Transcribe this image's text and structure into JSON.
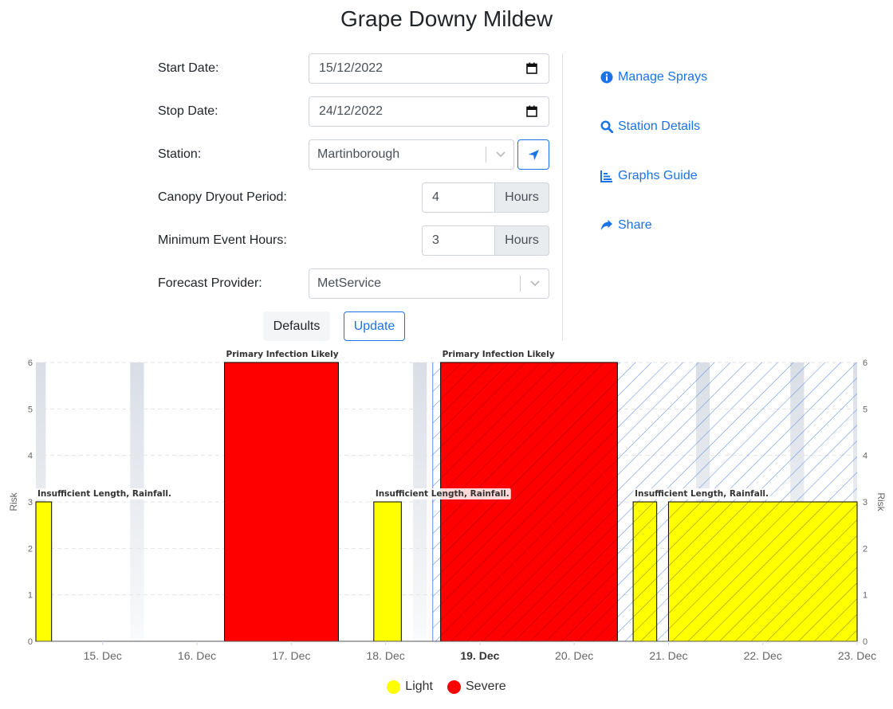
{
  "page": {
    "title": "Grape Downy Mildew"
  },
  "form": {
    "start_label": "Start Date:",
    "start_value": "15/12/2022",
    "stop_label": "Stop Date:",
    "stop_value": "24/12/2022",
    "station_label": "Station:",
    "station_value": "Martinborough",
    "canopy_label": "Canopy Dryout Period:",
    "canopy_value": "4",
    "canopy_unit": "Hours",
    "min_label": "Minimum Event Hours:",
    "min_value": "3",
    "min_unit": "Hours",
    "provider_label": "Forecast Provider:",
    "provider_value": "MetService",
    "defaults_label": "Defaults",
    "update_label": "Update"
  },
  "links": {
    "manage_sprays": "Manage Sprays",
    "station_details": "Station Details",
    "graphs_guide": "Graphs Guide",
    "share": "Share"
  },
  "colors": {
    "accent": "#1a73e8",
    "light": "#ffff00",
    "severe": "#ff0000"
  },
  "chart_data": {
    "type": "bar",
    "y_axis_label": "Risk",
    "ylim": [
      0,
      6
    ],
    "y_ticks": [
      0,
      1,
      2,
      3,
      4,
      5,
      6
    ],
    "x_range": [
      "14 Dec 19:00",
      "23 Dec 12:00"
    ],
    "x_tick_labels": [
      "15. Dec",
      "16. Dec",
      "17. Dec",
      "18. Dec",
      "19. Dec",
      "20. Dec",
      "21. Dec",
      "22. Dec",
      "23. Dec"
    ],
    "current_day_label": "19. Dec",
    "grid": true,
    "forecast_region_start": "19 Dec 00:00",
    "night_bands": [
      [
        "14 Dec 19:00",
        "14 Dec 21:30"
      ],
      [
        "15 Dec 19:00",
        "15 Dec 22:30"
      ],
      [
        "16 Dec 19:00",
        "16 Dec 22:30"
      ],
      [
        "18 Dec 19:00",
        "18 Dec 22:30"
      ],
      [
        "21 Dec 19:00",
        "21 Dec 22:30"
      ],
      [
        "22 Dec 19:00",
        "22 Dec 22:30"
      ],
      [
        "23 Dec 11:00",
        "23 Dec 12:00"
      ]
    ],
    "series": [
      {
        "name": "Light",
        "color": "#ffff00"
      },
      {
        "name": "Severe",
        "color": "#ff0000"
      }
    ],
    "bars": [
      {
        "series": "Light",
        "start": "14 Dec 19:00",
        "end": "14 Dec 23:00",
        "value": 3,
        "label": "Insufficient Length, Rainfall."
      },
      {
        "series": "Severe",
        "start": "16 Dec 19:00",
        "end": "17 Dec 24:00",
        "value": 6,
        "label": "Primary Infection Likely"
      },
      {
        "series": "Light",
        "start": "18 Dec 09:00",
        "end": "18 Dec 16:00",
        "value": 3,
        "label": "Insufficient Length, Rainfall."
      },
      {
        "series": "Severe",
        "start": "19 Dec 02:00",
        "end": "20 Dec 23:00",
        "value": 6,
        "label": "Primary Infection Likely"
      },
      {
        "series": "Light",
        "start": "21 Dec 03:00",
        "end": "21 Dec 09:00",
        "value": 3,
        "label": "Insufficient Length, Rainfall."
      },
      {
        "series": "Light",
        "start": "21 Dec 12:00",
        "end": "23 Dec 12:00",
        "value": 3,
        "label": ""
      }
    ]
  }
}
